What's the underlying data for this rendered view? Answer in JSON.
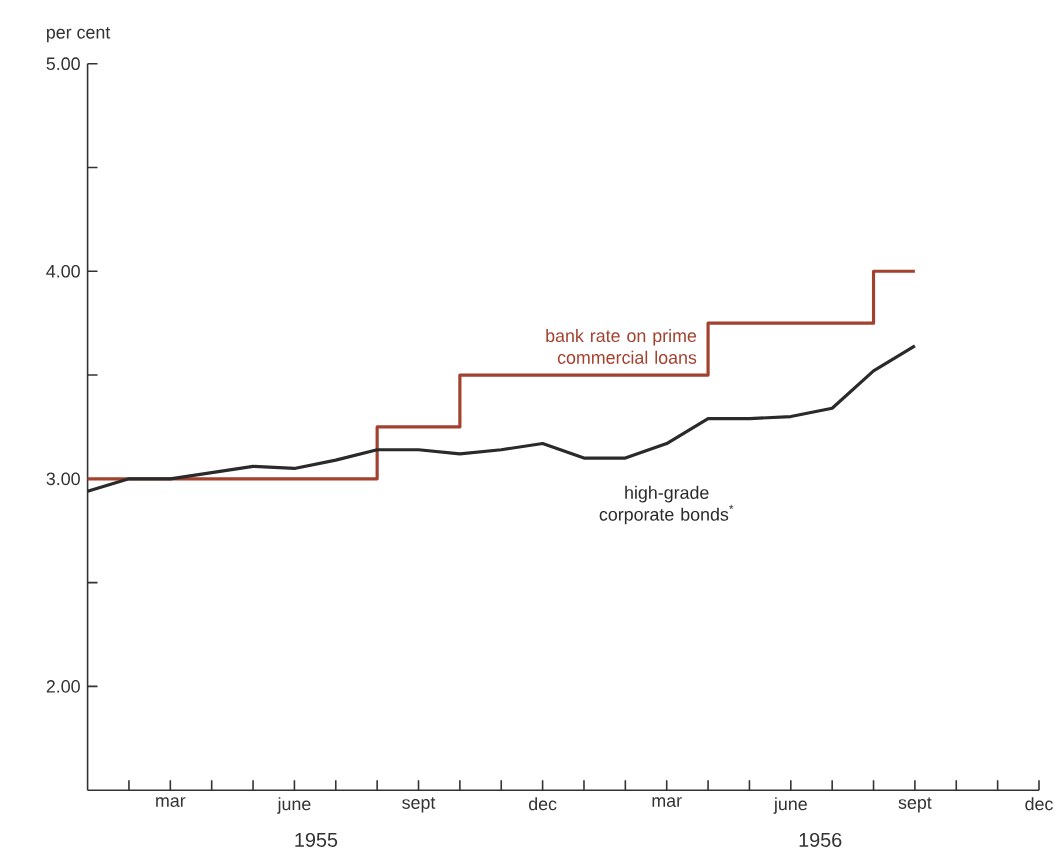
{
  "chart_data": {
    "type": "line",
    "ylabel": "per cent",
    "series": [
      {
        "name": "bank rate on prime commercial loans",
        "type": "step",
        "color": "#a3412f",
        "x": [
          "1955-01",
          "1955-08",
          "1955-10",
          "1956-04",
          "1956-08",
          "1956-09"
        ],
        "values": [
          3.0,
          3.25,
          3.5,
          3.75,
          4.0,
          4.0
        ]
      },
      {
        "name": "high-grade corporate bonds$^{*}$",
        "color": "#2a2a2a",
        "x": [
          "1955-01",
          "1955-02",
          "1955-03",
          "1955-04",
          "1955-05",
          "1955-06",
          "1955-07",
          "1955-08",
          "1955-09",
          "1955-10",
          "1955-11",
          "1955-12",
          "1956-01",
          "1956-02",
          "1956-03",
          "1956-04",
          "1956-05",
          "1956-06",
          "1956-07",
          "1956-08",
          "1956-09"
        ],
        "values": [
          2.94,
          3.0,
          3.0,
          3.03,
          3.06,
          3.05,
          3.09,
          3.14,
          3.14,
          3.12,
          3.14,
          3.17,
          3.1,
          3.1,
          3.17,
          3.29,
          3.29,
          3.3,
          3.34,
          3.52,
          3.64
        ]
      }
    ],
    "xlim": [
      "1955-01",
      "1956-12"
    ],
    "xticks": [
      {
        "value": "1955-02",
        "label": null
      },
      {
        "value": "1955-03",
        "label": "mar"
      },
      {
        "value": "1955-04",
        "label": null
      },
      {
        "value": "1955-05",
        "label": null
      },
      {
        "value": "1955-06",
        "label": "june"
      },
      {
        "value": "1955-07",
        "label": null
      },
      {
        "value": "1955-08",
        "label": null
      },
      {
        "value": "1955-09",
        "label": "sept"
      },
      {
        "value": "1955-10",
        "label": null
      },
      {
        "value": "1955-11",
        "label": null
      },
      {
        "value": "1955-12",
        "label": "dec"
      },
      {
        "value": "1956-01",
        "label": null
      },
      {
        "value": "1956-02",
        "label": null
      },
      {
        "value": "1956-03",
        "label": "mar"
      },
      {
        "value": "1956-04",
        "label": null
      },
      {
        "value": "1956-05",
        "label": null
      },
      {
        "value": "1956-06",
        "label": "june"
      },
      {
        "value": "1956-07",
        "label": null
      },
      {
        "value": "1956-08",
        "label": null
      },
      {
        "value": "1956-09",
        "label": "sept"
      },
      {
        "value": "1956-10",
        "label": null
      },
      {
        "value": "1956-11",
        "label": null
      },
      {
        "value": "1956-12",
        "label": "dec"
      }
    ],
    "ylim": [
      1.5,
      5
    ],
    "yticks": [
      {
        "value": 2,
        "label": "2.00"
      },
      {
        "value": 2.5,
        "label": null
      },
      {
        "value": 3,
        "label": "3.00"
      },
      {
        "value": 3.5,
        "label": null
      },
      {
        "value": 4,
        "label": "4.00"
      },
      {
        "value": 4.5,
        "label": null
      },
      {
        "value": 5,
        "label": "5.00"
      }
    ],
    "annotations": [
      "1955",
      "1956"
    ],
    "grid": false
  }
}
